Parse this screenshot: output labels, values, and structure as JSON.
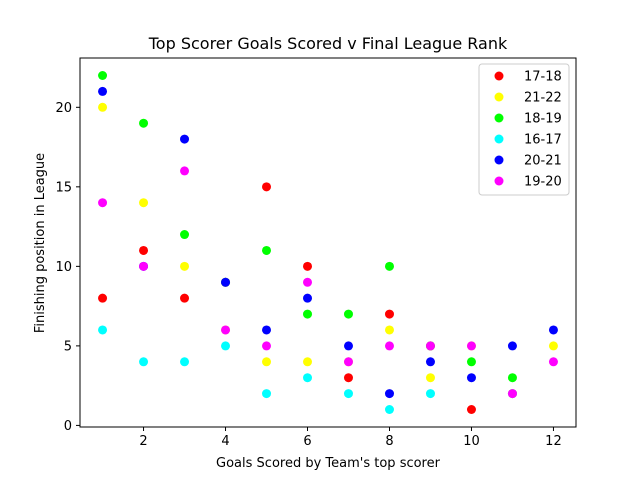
{
  "chart_data": {
    "type": "scatter",
    "title": "Top Scorer Goals Scored v Final League Rank",
    "xlabel": "Goals Scored by Team's top scorer",
    "ylabel": "Finishing position in League",
    "xlim": [
      0.45,
      12.55
    ],
    "ylim": [
      -0.1,
      23.1
    ],
    "xticks": [
      2,
      4,
      6,
      8,
      10,
      12
    ],
    "yticks": [
      0,
      5,
      10,
      15,
      20
    ],
    "grid": false,
    "legend_position": "top-right",
    "series": [
      {
        "name": "17-18",
        "color": "#ff0000",
        "points": [
          [
            1,
            8
          ],
          [
            2,
            11
          ],
          [
            3,
            8
          ],
          [
            4,
            9
          ],
          [
            5,
            15
          ],
          [
            6,
            10
          ],
          [
            7,
            3
          ],
          [
            8,
            7
          ],
          [
            9,
            5
          ],
          [
            10,
            1
          ],
          [
            11,
            2
          ]
        ]
      },
      {
        "name": "21-22",
        "color": "#ffff00",
        "points": [
          [
            1,
            20
          ],
          [
            2,
            14
          ],
          [
            3,
            10
          ],
          [
            4,
            6
          ],
          [
            5,
            4
          ],
          [
            6,
            4
          ],
          [
            7,
            4
          ],
          [
            8,
            6
          ],
          [
            9,
            3
          ],
          [
            10,
            5
          ],
          [
            11,
            2
          ],
          [
            12,
            5
          ]
        ]
      },
      {
        "name": "18-19",
        "color": "#00ff00",
        "points": [
          [
            1,
            22
          ],
          [
            2,
            19
          ],
          [
            3,
            12
          ],
          [
            4,
            9
          ],
          [
            5,
            11
          ],
          [
            6,
            7
          ],
          [
            7,
            7
          ],
          [
            8,
            10
          ],
          [
            9,
            5
          ],
          [
            10,
            4
          ],
          [
            11,
            3
          ]
        ]
      },
      {
        "name": "16-17",
        "color": "#00ffff",
        "points": [
          [
            1,
            6
          ],
          [
            2,
            4
          ],
          [
            3,
            4
          ],
          [
            4,
            5
          ],
          [
            5,
            2
          ],
          [
            6,
            3
          ],
          [
            7,
            2
          ],
          [
            8,
            1
          ],
          [
            9,
            2
          ],
          [
            11,
            2
          ]
        ]
      },
      {
        "name": "20-21",
        "color": "#0000ff",
        "points": [
          [
            1,
            21
          ],
          [
            2,
            10
          ],
          [
            3,
            18
          ],
          [
            4,
            9
          ],
          [
            5,
            6
          ],
          [
            6,
            8
          ],
          [
            7,
            5
          ],
          [
            8,
            2
          ],
          [
            9,
            4
          ],
          [
            10,
            3
          ],
          [
            11,
            5
          ],
          [
            12,
            6
          ]
        ]
      },
      {
        "name": "19-20",
        "color": "#ff00ff",
        "points": [
          [
            1,
            14
          ],
          [
            2,
            10
          ],
          [
            3,
            16
          ],
          [
            4,
            6
          ],
          [
            5,
            5
          ],
          [
            6,
            9
          ],
          [
            7,
            4
          ],
          [
            8,
            5
          ],
          [
            9,
            5
          ],
          [
            10,
            5
          ],
          [
            11,
            2
          ],
          [
            12,
            4
          ]
        ]
      }
    ]
  }
}
